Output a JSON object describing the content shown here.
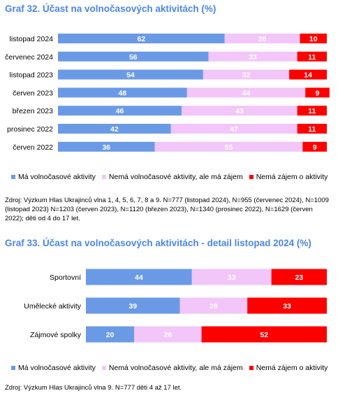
{
  "colors": {
    "title": "#4a86e8",
    "series": [
      "#6a9ae6",
      "#f2c6f8",
      "#ff0000"
    ]
  },
  "titles": {
    "chart1": "Graf 32. Účast na volnočasových aktivitách (%)",
    "chart2": "Graf 33. Účast na volnočasových aktivitách - detail listopad 2024 (%)"
  },
  "sources": {
    "chart1": "Zdroj: Výzkum Hlas Ukrajinců vlna 1, 4, 5, 6, 7, 8 a 9. N=777 (listopad 2024), N=955 (červenec 2024), N=1009 (listopad 2023) N=1203 (červen 2023), N=1120 (březen 2023), N=1340 (prosinec 2022), N=1629 (červen 2022); děti od 4 do 17 let.",
    "chart2": "Zdroj: Výzkum Hlas Ukrajinců vlna 9. N=777 děti 4 až 17 let."
  },
  "chart_data": [
    {
      "type": "bar",
      "orientation": "horizontal",
      "stacked": true,
      "title": "Graf 32. Účast na volnočasových aktivitách (%)",
      "categories": [
        "listopad 2024",
        "červenec 2024",
        "listopad 2023",
        "červen 2023",
        "březen 2023",
        "prosinec 2022",
        "červen 2022"
      ],
      "series": [
        {
          "name": "Má volnočasové aktivity",
          "values": [
            62,
            56,
            54,
            48,
            46,
            42,
            36
          ]
        },
        {
          "name": "Nemá volnočasové aktivity, ale má zájem",
          "values": [
            28,
            33,
            32,
            44,
            43,
            47,
            55
          ]
        },
        {
          "name": "Nemá zájem o aktivity",
          "values": [
            10,
            11,
            14,
            9,
            11,
            11,
            9
          ]
        }
      ],
      "xlim": [
        0,
        100
      ],
      "legend": "bottom"
    },
    {
      "type": "bar",
      "orientation": "horizontal",
      "stacked": true,
      "title": "Graf 33. Účast na volnočasových aktivitách - detail listopad 2024 (%)",
      "categories": [
        "Sportovní",
        "Umělecké aktivity",
        "Zájmové spolky"
      ],
      "series": [
        {
          "name": "Má volnočasové aktivity",
          "values": [
            44,
            39,
            20
          ]
        },
        {
          "name": "Nemá volnočasové aktivity, ale má zájem",
          "values": [
            33,
            28,
            28
          ]
        },
        {
          "name": "Nemá zájem o aktivity",
          "values": [
            23,
            33,
            52
          ]
        }
      ],
      "xlim": [
        0,
        100
      ],
      "legend": "bottom"
    }
  ]
}
